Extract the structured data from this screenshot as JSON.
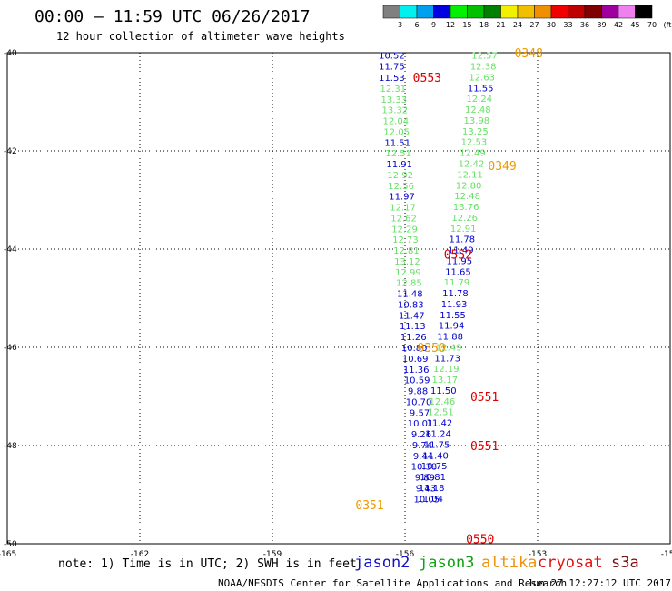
{
  "header": {
    "title": "00:00 – 11:59 UTC 06/26/2017",
    "subtitle": "12 hour collection of altimeter wave heights"
  },
  "footer": {
    "note": "note: 1) Time is in UTC; 2) SWH is in feet",
    "credit": "NOAA/NESDIS Center for Satellite Applications and Research",
    "timestamp": "Jun 27 12:27:12 UTC 2017"
  },
  "legend": {
    "satellites": [
      {
        "name": "jason2",
        "color": "#1010c8"
      },
      {
        "name": "jason3",
        "color": "#10a010"
      },
      {
        "name": "altika",
        "color": "#f09010"
      },
      {
        "name": "cryosat",
        "color": "#e01010"
      },
      {
        "name": "s3a",
        "color": "#7a1010"
      }
    ]
  },
  "colorbar": {
    "labels": [
      "3",
      "6",
      "9",
      "12",
      "15",
      "18",
      "21",
      "24",
      "27",
      "30",
      "33",
      "36",
      "39",
      "42",
      "45",
      "70",
      "(ft)"
    ],
    "colors": [
      "#808080",
      "#00f0f0",
      "#00a0f0",
      "#0000e0",
      "#00f000",
      "#00c000",
      "#008000",
      "#f0f000",
      "#f0c000",
      "#f09000",
      "#f00000",
      "#c00000",
      "#800000",
      "#a000a0",
      "#f080f0",
      "#000000"
    ]
  },
  "chart_data": {
    "type": "scatter",
    "title": "12 hour collection of altimeter wave heights",
    "xlim": [
      -165,
      -150
    ],
    "ylim": [
      -50,
      -40
    ],
    "x_ticks": [
      -165,
      -162,
      -159,
      -156,
      -153,
      -150
    ],
    "y_ticks": [
      -40,
      -42,
      -44,
      -46,
      -48,
      -50
    ],
    "grid": true,
    "legend": "bottom",
    "unit": "feet",
    "point_colors": {
      "blue": "#0000cc",
      "green": "#66e066",
      "orange": "#ee9900",
      "red": "#dd0000"
    },
    "points": [
      {
        "lon": -156.3,
        "lat": -40.05,
        "v": "10.52",
        "c": "blue"
      },
      {
        "lon": -156.3,
        "lat": -40.27,
        "v": "11.75",
        "c": "blue"
      },
      {
        "lon": -156.3,
        "lat": -40.5,
        "v": "11.53",
        "c": "blue"
      },
      {
        "lon": -156.27,
        "lat": -40.72,
        "v": "12.31",
        "c": "green"
      },
      {
        "lon": -156.25,
        "lat": -40.94,
        "v": "13.33",
        "c": "green"
      },
      {
        "lon": -156.23,
        "lat": -41.16,
        "v": "13.32",
        "c": "green"
      },
      {
        "lon": -156.21,
        "lat": -41.38,
        "v": "12.04",
        "c": "green"
      },
      {
        "lon": -156.19,
        "lat": -41.6,
        "v": "12.05",
        "c": "green"
      },
      {
        "lon": -156.17,
        "lat": -41.82,
        "v": "11.51",
        "c": "blue"
      },
      {
        "lon": -156.15,
        "lat": -42.04,
        "v": "12.51",
        "c": "green"
      },
      {
        "lon": -156.13,
        "lat": -42.26,
        "v": "11.91",
        "c": "blue"
      },
      {
        "lon": -156.11,
        "lat": -42.48,
        "v": "12.92",
        "c": "green"
      },
      {
        "lon": -156.09,
        "lat": -42.7,
        "v": "12.56",
        "c": "green"
      },
      {
        "lon": -156.07,
        "lat": -42.92,
        "v": "11.97",
        "c": "blue"
      },
      {
        "lon": -156.05,
        "lat": -43.14,
        "v": "12.17",
        "c": "green"
      },
      {
        "lon": -156.03,
        "lat": -43.36,
        "v": "12.62",
        "c": "green"
      },
      {
        "lon": -156.01,
        "lat": -43.58,
        "v": "12.29",
        "c": "green"
      },
      {
        "lon": -155.99,
        "lat": -43.8,
        "v": "12.73",
        "c": "green"
      },
      {
        "lon": -155.97,
        "lat": -44.02,
        "v": "12.81",
        "c": "green"
      },
      {
        "lon": -155.95,
        "lat": -44.24,
        "v": "13.12",
        "c": "green"
      },
      {
        "lon": -155.93,
        "lat": -44.46,
        "v": "12.99",
        "c": "green"
      },
      {
        "lon": -155.91,
        "lat": -44.68,
        "v": "12.85",
        "c": "green"
      },
      {
        "lon": -155.89,
        "lat": -44.9,
        "v": "11.48",
        "c": "blue"
      },
      {
        "lon": -155.87,
        "lat": -45.12,
        "v": "10.83",
        "c": "blue"
      },
      {
        "lon": -155.85,
        "lat": -45.34,
        "v": "11.47",
        "c": "blue"
      },
      {
        "lon": -155.83,
        "lat": -45.56,
        "v": "11.13",
        "c": "blue"
      },
      {
        "lon": -155.81,
        "lat": -45.78,
        "v": "11.26",
        "c": "blue"
      },
      {
        "lon": -155.79,
        "lat": -46.0,
        "v": "10.80",
        "c": "blue"
      },
      {
        "lon": -155.77,
        "lat": -46.22,
        "v": "10.69",
        "c": "blue"
      },
      {
        "lon": -155.75,
        "lat": -46.44,
        "v": "11.36",
        "c": "blue"
      },
      {
        "lon": -155.73,
        "lat": -46.66,
        "v": "10.59",
        "c": "blue"
      },
      {
        "lon": -155.71,
        "lat": -46.88,
        "v": "9.88",
        "c": "blue"
      },
      {
        "lon": -155.69,
        "lat": -47.1,
        "v": "10.70",
        "c": "blue"
      },
      {
        "lon": -155.67,
        "lat": -47.32,
        "v": "9.57",
        "c": "blue"
      },
      {
        "lon": -155.65,
        "lat": -47.54,
        "v": "10.01",
        "c": "blue"
      },
      {
        "lon": -155.63,
        "lat": -47.76,
        "v": "9.26",
        "c": "blue"
      },
      {
        "lon": -155.61,
        "lat": -47.98,
        "v": "9.74",
        "c": "blue"
      },
      {
        "lon": -155.59,
        "lat": -48.2,
        "v": "9.44",
        "c": "blue"
      },
      {
        "lon": -155.57,
        "lat": -48.42,
        "v": "10.38",
        "c": "blue"
      },
      {
        "lon": -155.55,
        "lat": -48.64,
        "v": "9.89",
        "c": "blue"
      },
      {
        "lon": -155.53,
        "lat": -48.86,
        "v": "9.43",
        "c": "blue"
      },
      {
        "lon": -155.51,
        "lat": -49.08,
        "v": "10.05",
        "c": "blue"
      },
      {
        "lon": -154.2,
        "lat": -40.05,
        "v": "12.57",
        "c": "green"
      },
      {
        "lon": -154.23,
        "lat": -40.27,
        "v": "12.38",
        "c": "green"
      },
      {
        "lon": -154.26,
        "lat": -40.49,
        "v": "12.63",
        "c": "green"
      },
      {
        "lon": -154.29,
        "lat": -40.71,
        "v": "11.55",
        "c": "blue"
      },
      {
        "lon": -154.32,
        "lat": -40.93,
        "v": "12.24",
        "c": "green"
      },
      {
        "lon": -154.35,
        "lat": -41.15,
        "v": "12.48",
        "c": "green"
      },
      {
        "lon": -154.38,
        "lat": -41.37,
        "v": "13.98",
        "c": "green"
      },
      {
        "lon": -154.41,
        "lat": -41.59,
        "v": "13.25",
        "c": "green"
      },
      {
        "lon": -154.44,
        "lat": -41.81,
        "v": "12.53",
        "c": "green"
      },
      {
        "lon": -154.47,
        "lat": -42.03,
        "v": "12.49",
        "c": "green"
      },
      {
        "lon": -154.5,
        "lat": -42.25,
        "v": "12.42",
        "c": "green"
      },
      {
        "lon": -154.53,
        "lat": -42.47,
        "v": "12.11",
        "c": "green"
      },
      {
        "lon": -154.56,
        "lat": -42.69,
        "v": "12.80",
        "c": "green"
      },
      {
        "lon": -154.59,
        "lat": -42.91,
        "v": "12.48",
        "c": "green"
      },
      {
        "lon": -154.62,
        "lat": -43.13,
        "v": "13.76",
        "c": "green"
      },
      {
        "lon": -154.65,
        "lat": -43.35,
        "v": "12.26",
        "c": "green"
      },
      {
        "lon": -154.68,
        "lat": -43.57,
        "v": "12.91",
        "c": "green"
      },
      {
        "lon": -154.71,
        "lat": -43.79,
        "v": "11.78",
        "c": "blue"
      },
      {
        "lon": -154.74,
        "lat": -44.01,
        "v": "11.49",
        "c": "blue"
      },
      {
        "lon": -154.77,
        "lat": -44.23,
        "v": "11.95",
        "c": "blue"
      },
      {
        "lon": -154.8,
        "lat": -44.45,
        "v": "11.65",
        "c": "blue"
      },
      {
        "lon": -154.83,
        "lat": -44.67,
        "v": "11.79",
        "c": "green"
      },
      {
        "lon": -154.86,
        "lat": -44.89,
        "v": "11.78",
        "c": "blue"
      },
      {
        "lon": -154.89,
        "lat": -45.11,
        "v": "11.93",
        "c": "blue"
      },
      {
        "lon": -154.92,
        "lat": -45.33,
        "v": "11.55",
        "c": "blue"
      },
      {
        "lon": -154.95,
        "lat": -45.55,
        "v": "11.94",
        "c": "blue"
      },
      {
        "lon": -154.98,
        "lat": -45.77,
        "v": "11.88",
        "c": "blue"
      },
      {
        "lon": -155.01,
        "lat": -45.99,
        "v": "12.49",
        "c": "green"
      },
      {
        "lon": -155.04,
        "lat": -46.21,
        "v": "11.73",
        "c": "blue"
      },
      {
        "lon": -155.07,
        "lat": -46.43,
        "v": "12.19",
        "c": "green"
      },
      {
        "lon": -155.1,
        "lat": -46.65,
        "v": "13.17",
        "c": "green"
      },
      {
        "lon": -155.13,
        "lat": -46.87,
        "v": "11.50",
        "c": "blue"
      },
      {
        "lon": -155.16,
        "lat": -47.09,
        "v": "12.46",
        "c": "green"
      },
      {
        "lon": -155.19,
        "lat": -47.31,
        "v": "12.51",
        "c": "green"
      },
      {
        "lon": -155.22,
        "lat": -47.53,
        "v": "11.42",
        "c": "blue"
      },
      {
        "lon": -155.25,
        "lat": -47.75,
        "v": "11.24",
        "c": "blue"
      },
      {
        "lon": -155.28,
        "lat": -47.97,
        "v": "11.75",
        "c": "blue"
      },
      {
        "lon": -155.31,
        "lat": -48.19,
        "v": "11.40",
        "c": "blue"
      },
      {
        "lon": -155.34,
        "lat": -48.41,
        "v": "10.75",
        "c": "blue"
      },
      {
        "lon": -155.37,
        "lat": -48.63,
        "v": "10.81",
        "c": "blue"
      },
      {
        "lon": -155.4,
        "lat": -48.85,
        "v": "11.18",
        "c": "blue"
      },
      {
        "lon": -155.43,
        "lat": -49.07,
        "v": "11.04",
        "c": "blue"
      }
    ],
    "pass_labels": [
      {
        "lon": -153.2,
        "lat": -40.0,
        "v": "0348",
        "c": "orange"
      },
      {
        "lon": -155.5,
        "lat": -40.5,
        "v": "0553",
        "c": "red"
      },
      {
        "lon": -153.8,
        "lat": -42.3,
        "v": "0349",
        "c": "orange"
      },
      {
        "lon": -154.8,
        "lat": -44.1,
        "v": "0552",
        "c": "red"
      },
      {
        "lon": -155.4,
        "lat": -46.0,
        "v": "0350",
        "c": "orange"
      },
      {
        "lon": -154.2,
        "lat": -47.0,
        "v": "0551",
        "c": "red"
      },
      {
        "lon": -154.2,
        "lat": -48.0,
        "v": "0551",
        "c": "red"
      },
      {
        "lon": -156.8,
        "lat": -49.2,
        "v": "0351",
        "c": "orange"
      },
      {
        "lon": -154.3,
        "lat": -49.9,
        "v": "0550",
        "c": "red"
      }
    ]
  }
}
